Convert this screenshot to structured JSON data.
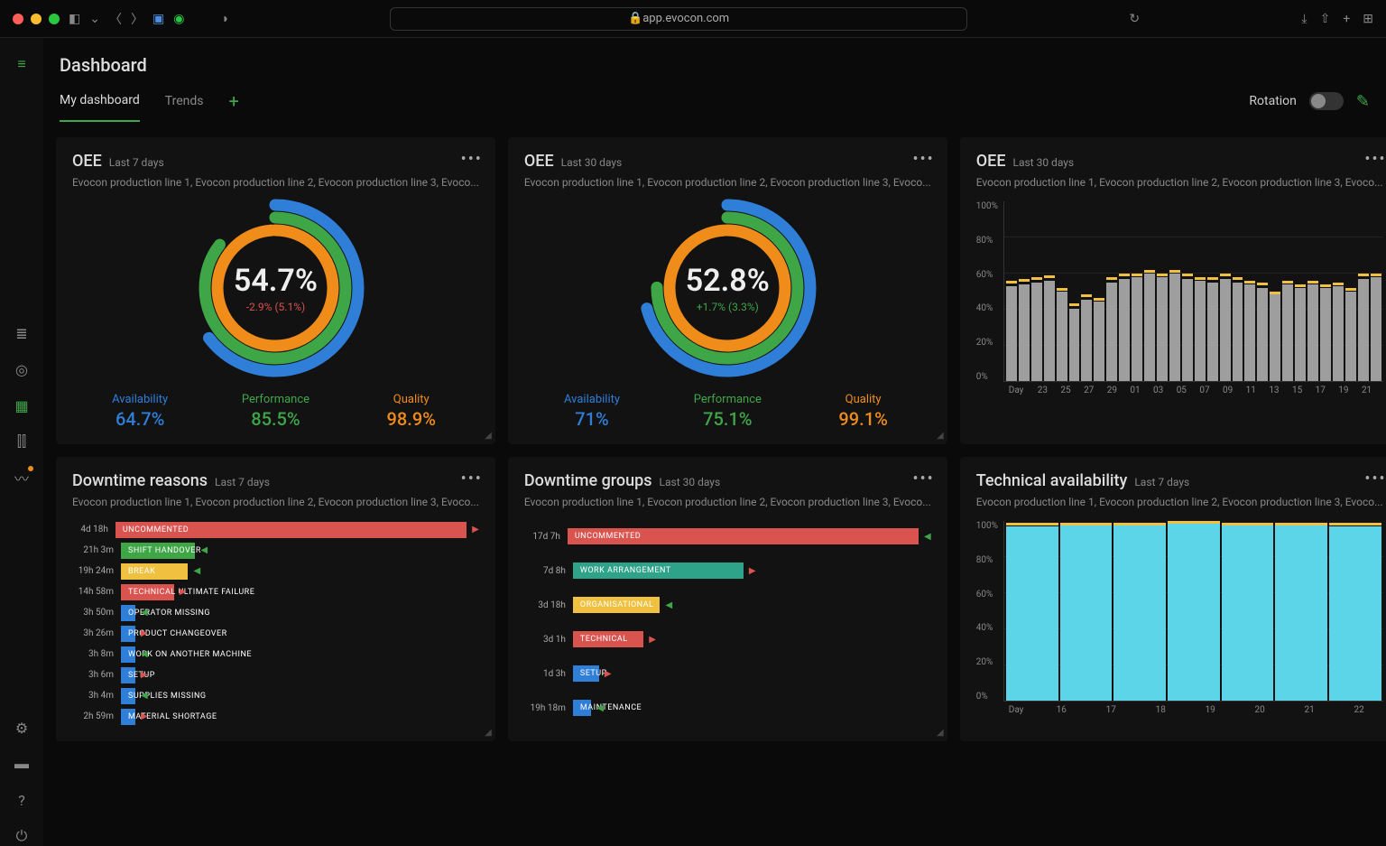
{
  "browser": {
    "url": "app.evocon.com",
    "traffic_colors": [
      "#ff5f57",
      "#febc2e",
      "#28c840"
    ]
  },
  "page": {
    "title": "Dashboard",
    "tabs": [
      "My dashboard",
      "Trends"
    ],
    "active_tab": 0,
    "rotation_label": "Rotation"
  },
  "colors": {
    "availability": "#2f7ed8",
    "performance": "#3fa648",
    "quality": "#f08c1a",
    "bg": "#121212",
    "grid": "#222",
    "bar_default": "#9e9e9e",
    "bar_accent": "#f0c040",
    "tech_bar": "#5dd5e8",
    "green": "#3fa648",
    "red": "#d9534f"
  },
  "cards": {
    "oee7": {
      "title": "OEE",
      "period": "Last 7 days",
      "subtitle": "Evocon production line 1, Evocon production line 2, Evocon production line 3, Evoco...",
      "value": "54.7%",
      "delta": "-2.9% (5.1%)",
      "delta_color": "#d9534f",
      "rings": [
        {
          "color": "#2f7ed8",
          "pct": 64.7
        },
        {
          "color": "#3fa648",
          "pct": 85.5
        },
        {
          "color": "#f08c1a",
          "pct": 98.9
        }
      ],
      "kpis": [
        {
          "label": "Availability",
          "value": "64.7%",
          "color": "#2f7ed8"
        },
        {
          "label": "Performance",
          "value": "85.5%",
          "color": "#3fa648"
        },
        {
          "label": "Quality",
          "value": "98.9%",
          "color": "#f08c1a"
        }
      ]
    },
    "oee30": {
      "title": "OEE",
      "period": "Last 30 days",
      "subtitle": "Evocon production line 1, Evocon production line 2, Evocon production line 3, Evoco...",
      "value": "52.8%",
      "delta": "+1.7% (3.3%)",
      "delta_color": "#3fa648",
      "rings": [
        {
          "color": "#2f7ed8",
          "pct": 71
        },
        {
          "color": "#3fa648",
          "pct": 75.1
        },
        {
          "color": "#f08c1a",
          "pct": 99.1
        }
      ],
      "kpis": [
        {
          "label": "Availability",
          "value": "71%",
          "color": "#2f7ed8"
        },
        {
          "label": "Performance",
          "value": "75.1%",
          "color": "#3fa648"
        },
        {
          "label": "Quality",
          "value": "99.1%",
          "color": "#f08c1a"
        }
      ]
    },
    "oee_chart": {
      "title": "OEE",
      "period": "Last 30 days",
      "subtitle": "Evocon production line 1, Evocon production line 2, Evocon production line 3, Evoco...",
      "y_ticks": [
        "100%",
        "80%",
        "60%",
        "40%",
        "20%",
        "0%"
      ],
      "x_label": "Day",
      "x_ticks": [
        "23",
        "",
        "25",
        "",
        "27",
        "",
        "29",
        "",
        "01",
        "",
        "03",
        "",
        "05",
        "",
        "07",
        "",
        "09",
        "",
        "11",
        "",
        "13",
        "",
        "15",
        "",
        "17",
        "",
        "19",
        "",
        "21",
        ""
      ],
      "bars": [
        53,
        54,
        55,
        56,
        50,
        40,
        45,
        44,
        55,
        57,
        58,
        60,
        58,
        60,
        57,
        56,
        55,
        57,
        55,
        54,
        52,
        50,
        54,
        52,
        54,
        52,
        53,
        50,
        57,
        58
      ],
      "accent": [
        56,
        57,
        58,
        59,
        52,
        43,
        48,
        46,
        58,
        60,
        60,
        62,
        60,
        62,
        60,
        58,
        58,
        60,
        58,
        56,
        55,
        50,
        56,
        54,
        56,
        54,
        55,
        52,
        60,
        60
      ],
      "ylim": 100
    },
    "downtime7": {
      "title": "Downtime reasons",
      "period": "Last 7 days",
      "subtitle": "Evocon production line 1, Evocon production line 2, Evocon production line 3, Evoco...",
      "max": 115,
      "rows": [
        {
          "time": "4d 18h",
          "label": "UNCOMMENTED",
          "val": 114,
          "color": "#d9534f",
          "arr": "▶",
          "arr_color": "#d9534f"
        },
        {
          "time": "21h 3m",
          "label": "SHIFT HANDOVER",
          "val": 21,
          "color": "#3fa648",
          "arr": "◀",
          "arr_color": "#3fa648"
        },
        {
          "time": "19h 24m",
          "label": "BREAK",
          "val": 19,
          "color": "#f0c040",
          "arr": "◀",
          "arr_color": "#3fa648"
        },
        {
          "time": "14h 58m",
          "label": "TECHNICAL ULTIMATE FAILURE",
          "val": 15,
          "color": "#d9534f",
          "arr": "▶",
          "arr_color": "#d9534f"
        },
        {
          "time": "3h 50m",
          "label": "OPERATOR MISSING",
          "val": 4,
          "color": "#2f7ed8",
          "arr": "◀",
          "arr_color": "#3fa648"
        },
        {
          "time": "3h 26m",
          "label": "PRODUCT CHANGEOVER",
          "val": 3.5,
          "color": "#2f7ed8",
          "arr": "▶",
          "arr_color": "#d9534f"
        },
        {
          "time": "3h 8m",
          "label": "WORK ON ANOTHER MACHINE",
          "val": 3.2,
          "color": "#2f7ed8",
          "arr": "◀",
          "arr_color": "#3fa648"
        },
        {
          "time": "3h 6m",
          "label": "SETUP",
          "val": 3,
          "color": "#2f7ed8",
          "arr": "▶",
          "arr_color": "#d9534f"
        },
        {
          "time": "3h 4m",
          "label": "SUPPLIES MISSING",
          "val": 3,
          "color": "#2f7ed8",
          "arr": "◀",
          "arr_color": "#3fa648"
        },
        {
          "time": "2h 59m",
          "label": "MATERIAL SHORTAGE",
          "val": 3,
          "color": "#2f7ed8",
          "arr": "▶",
          "arr_color": "#d9534f"
        }
      ]
    },
    "downtime30": {
      "title": "Downtime groups",
      "period": "Last 30 days",
      "subtitle": "Evocon production line 1, Evocon production line 2, Evocon production line 3, Evoco...",
      "max": 420,
      "rows": [
        {
          "time": "17d 7h",
          "label": "UNCOMMENTED",
          "val": 415,
          "color": "#d9534f",
          "arr": "◀",
          "arr_color": "#3fa648"
        },
        {
          "time": "7d 8h",
          "label": "WORK ARRANGEMENT",
          "val": 176,
          "color": "#2ea38a",
          "arr": "▶",
          "arr_color": "#d9534f"
        },
        {
          "time": "3d 18h",
          "label": "ORGANISATIONAL",
          "val": 90,
          "color": "#f0c040",
          "arr": "◀",
          "arr_color": "#3fa648"
        },
        {
          "time": "3d 1h",
          "label": "TECHNICAL",
          "val": 73,
          "color": "#d9534f",
          "arr": "▶",
          "arr_color": "#d9534f"
        },
        {
          "time": "1d 3h",
          "label": "SETUP",
          "val": 27,
          "color": "#2f7ed8",
          "arr": "▶",
          "arr_color": "#d9534f"
        },
        {
          "time": "19h 18m",
          "label": "MAINTENANCE",
          "val": 19,
          "color": "#2f7ed8",
          "arr": "◀",
          "arr_color": "#3fa648"
        }
      ]
    },
    "tech": {
      "title": "Technical availability",
      "period": "Last 7 days",
      "subtitle": "Evocon production line 1, Evocon production line 2, Evocon production line 3, Evoco...",
      "y_ticks": [
        "100%",
        "80%",
        "60%",
        "40%",
        "20%",
        "0%"
      ],
      "x_label": "Day",
      "x_ticks": [
        "16",
        "17",
        "18",
        "19",
        "20",
        "21",
        "22"
      ],
      "bars": [
        97,
        98,
        98,
        99,
        98,
        98,
        97
      ],
      "accent": [
        99,
        99,
        99,
        100,
        99,
        99,
        99
      ],
      "ylim": 100,
      "bar_color": "#5dd5e8"
    }
  }
}
